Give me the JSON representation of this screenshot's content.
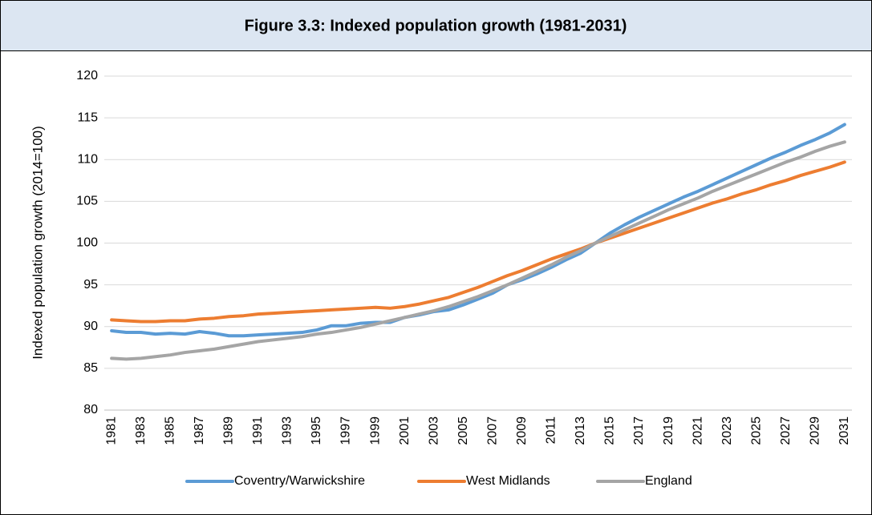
{
  "chart_data": {
    "type": "line",
    "title": "Figure 3.3: Indexed population growth (1981-2031)",
    "y_label": "Indexed population growth (2014=100)",
    "categories": [
      "1981",
      null,
      "1983",
      null,
      "1985",
      null,
      "1987",
      null,
      "1989",
      null,
      "1991",
      null,
      "1993",
      null,
      "1995",
      null,
      "1997",
      null,
      "1999",
      null,
      "2001",
      null,
      "2003",
      null,
      "2005",
      null,
      "2007",
      null,
      "2009",
      null,
      "2011",
      null,
      "2013",
      null,
      "2015",
      null,
      "2017",
      null,
      "2019",
      null,
      "2021",
      null,
      "2023",
      null,
      "2025",
      null,
      "2027",
      null,
      "2029",
      null,
      "2031"
    ],
    "series": [
      {
        "name": "Coventry/Warwickshire",
        "color": "#5b9bd5",
        "values": [
          89.5,
          89.3,
          89.3,
          89.1,
          89.2,
          89.1,
          89.4,
          89.2,
          88.9,
          88.9,
          89.0,
          89.1,
          89.2,
          89.3,
          89.6,
          90.1,
          90.1,
          90.4,
          90.5,
          90.5,
          91.1,
          91.4,
          91.8,
          92.0,
          92.6,
          93.3,
          94.0,
          95.0,
          95.6,
          96.3,
          97.1,
          98.0,
          98.8,
          100,
          101.2,
          102.2,
          103.1,
          103.9,
          104.7,
          105.5,
          106.2,
          107.0,
          107.8,
          108.6,
          109.4,
          110.2,
          110.9,
          111.7,
          112.4,
          113.2,
          114.2
        ]
      },
      {
        "name": "West Midlands",
        "color": "#ed7d31",
        "values": [
          90.8,
          90.7,
          90.6,
          90.6,
          90.7,
          90.7,
          90.9,
          91.0,
          91.2,
          91.3,
          91.5,
          91.6,
          91.7,
          91.8,
          91.9,
          92.0,
          92.1,
          92.2,
          92.3,
          92.2,
          92.4,
          92.7,
          93.1,
          93.5,
          94.1,
          94.7,
          95.4,
          96.1,
          96.7,
          97.4,
          98.1,
          98.7,
          99.3,
          100,
          100.6,
          101.2,
          101.8,
          102.4,
          103.0,
          103.6,
          104.2,
          104.8,
          105.3,
          105.9,
          106.4,
          107.0,
          107.5,
          108.1,
          108.6,
          109.1,
          109.7
        ]
      },
      {
        "name": "England",
        "color": "#a5a5a5",
        "values": [
          86.2,
          86.1,
          86.2,
          86.4,
          86.6,
          86.9,
          87.1,
          87.3,
          87.6,
          87.9,
          88.2,
          88.4,
          88.6,
          88.8,
          89.1,
          89.3,
          89.6,
          89.9,
          90.3,
          90.7,
          91.1,
          91.5,
          91.9,
          92.4,
          93.0,
          93.6,
          94.3,
          95.0,
          95.8,
          96.6,
          97.4,
          98.3,
          99.1,
          100,
          100.8,
          101.6,
          102.4,
          103.2,
          104.0,
          104.7,
          105.4,
          106.2,
          106.9,
          107.6,
          108.3,
          109.0,
          109.7,
          110.3,
          111.0,
          111.6,
          112.1
        ]
      }
    ],
    "ylim": [
      80,
      120
    ],
    "yticks": [
      80,
      85,
      90,
      95,
      100,
      105,
      110,
      115,
      120
    ],
    "grid": true,
    "legend": "bottom"
  }
}
